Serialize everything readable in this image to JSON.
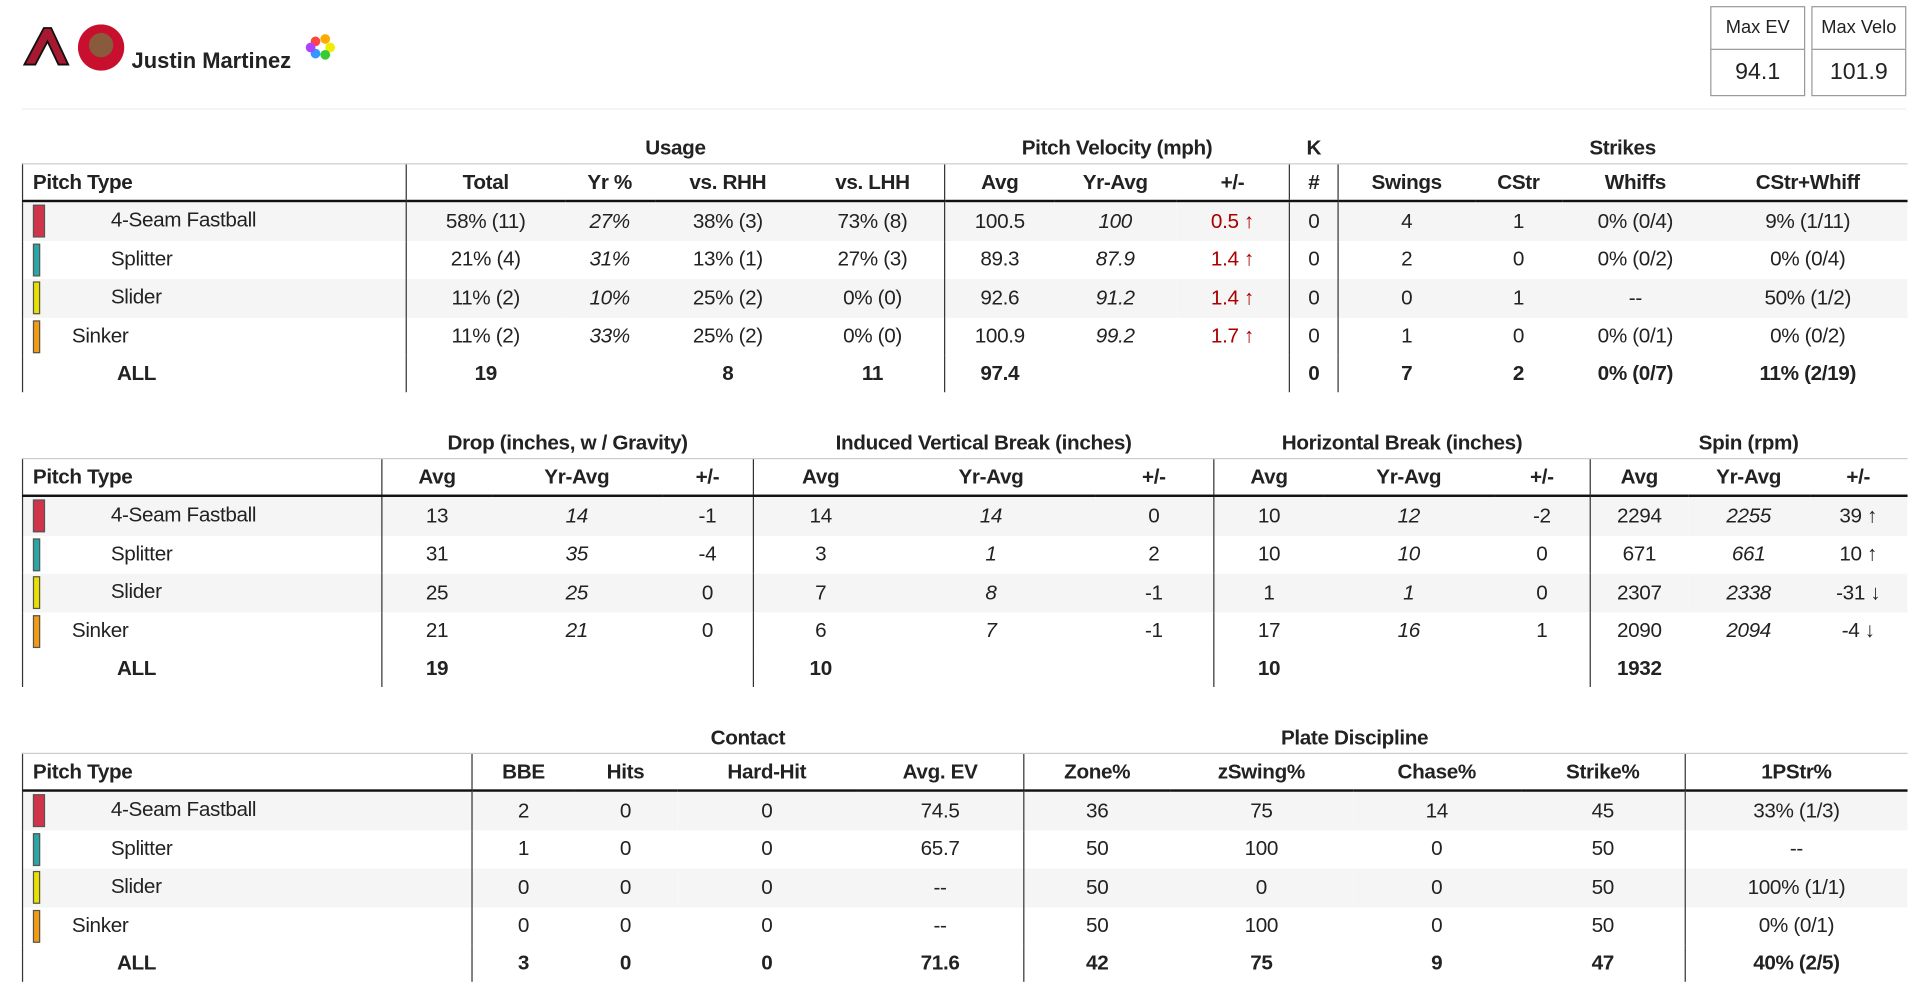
{
  "header": {
    "name": "Justin Martinez",
    "max_ev_label": "Max EV",
    "max_ev": "94.1",
    "max_velo_label": "Max Velo",
    "max_velo": "101.9"
  },
  "tables": [
    {
      "groups": [
        {
          "label": null,
          "span": 1
        },
        {
          "label": "Usage",
          "span": 4
        },
        {
          "label": "Pitch Velocity (mph)",
          "span": 3
        },
        {
          "label": "K",
          "span": 1
        },
        {
          "label": "Strikes",
          "span": 4
        }
      ],
      "columns": [
        "Pitch Type",
        "Total",
        "Yr %",
        "vs. RHH",
        "vs. LHH",
        "Avg",
        "Yr-Avg",
        "+/-",
        "#",
        "Swings",
        "CStr",
        "Whiffs",
        "CStr+Whiff"
      ],
      "rows": [
        {
          "pitch": "4-Seam Fastball",
          "color": "#d1334a",
          "cells": [
            "58% (11)",
            "27%",
            "38% (3)",
            "73% (8)",
            "100.5",
            "100",
            "0.5 ↑",
            "0",
            "4",
            "1",
            "0% (0/4)",
            "9% (1/11)"
          ]
        },
        {
          "pitch": "Splitter",
          "color": "#2aa6a6",
          "cells": [
            "21% (4)",
            "31%",
            "13% (1)",
            "27% (3)",
            "89.3",
            "87.9",
            "1.4 ↑",
            "0",
            "2",
            "0",
            "0% (0/2)",
            "0% (0/4)"
          ]
        },
        {
          "pitch": "Slider",
          "color": "#e8e000",
          "cells": [
            "11% (2)",
            "10%",
            "25% (2)",
            "0% (0)",
            "92.6",
            "91.2",
            "1.4 ↑",
            "0",
            "0",
            "1",
            "--",
            "50% (1/2)"
          ]
        },
        {
          "pitch": "Sinker",
          "color": "#f39c12",
          "cells": [
            "11% (2)",
            "33%",
            "25% (2)",
            "0% (0)",
            "100.9",
            "99.2",
            "1.7 ↑",
            "0",
            "1",
            "0",
            "0% (0/1)",
            "0% (0/2)"
          ]
        }
      ],
      "all": {
        "label": "ALL",
        "cells": [
          "19",
          null,
          "8",
          "11",
          "97.4",
          null,
          null,
          "0",
          "7",
          "2",
          "0% (0/7)",
          "11% (2/19)"
        ]
      }
    },
    {
      "groups": [
        {
          "label": null,
          "span": 1
        },
        {
          "label": "Drop (inches, w / Gravity)",
          "span": 3
        },
        {
          "label": "Induced Vertical Break (inches)",
          "span": 3
        },
        {
          "label": "Horizontal Break (inches)",
          "span": 3
        },
        {
          "label": "Spin (rpm)",
          "span": 3
        }
      ],
      "columns": [
        "Pitch Type",
        "Avg",
        "Yr-Avg",
        "+/-",
        "Avg",
        "Yr-Avg",
        "+/-",
        "Avg",
        "Yr-Avg",
        "+/-",
        "Avg",
        "Yr-Avg",
        "+/-"
      ],
      "rows": [
        {
          "pitch": "4-Seam Fastball",
          "color": "#d1334a",
          "cells": [
            "13",
            "14",
            "-1",
            "14",
            "14",
            "0",
            "10",
            "12",
            "-2",
            "2294",
            "2255",
            "39 ↑"
          ]
        },
        {
          "pitch": "Splitter",
          "color": "#2aa6a6",
          "cells": [
            "31",
            "35",
            "-4",
            "3",
            "1",
            "2",
            "10",
            "10",
            "0",
            "671",
            "661",
            "10 ↑"
          ]
        },
        {
          "pitch": "Slider",
          "color": "#e8e000",
          "cells": [
            "25",
            "25",
            "0",
            "7",
            "8",
            "-1",
            "1",
            "1",
            "0",
            "2307",
            "2338",
            "-31 ↓"
          ]
        },
        {
          "pitch": "Sinker",
          "color": "#f39c12",
          "cells": [
            "21",
            "21",
            "0",
            "6",
            "7",
            "-1",
            "17",
            "16",
            "1",
            "2090",
            "2094",
            "-4 ↓"
          ]
        }
      ],
      "all": {
        "label": "ALL",
        "cells": [
          "19",
          null,
          null,
          "10",
          null,
          null,
          "10",
          null,
          null,
          "1932",
          null,
          null
        ]
      }
    },
    {
      "groups": [
        {
          "label": null,
          "span": 1
        },
        {
          "label": "Contact",
          "span": 4
        },
        {
          "label": "Plate Discipline",
          "span": 4
        },
        {
          "label": null,
          "span": 1
        }
      ],
      "columns": [
        "Pitch Type",
        "BBE",
        "Hits",
        "Hard-Hit",
        "Avg. EV",
        "Zone%",
        "zSwing%",
        "Chase%",
        "Strike%",
        "1PStr%"
      ],
      "rows": [
        {
          "pitch": "4-Seam Fastball",
          "color": "#d1334a",
          "cells": [
            "2",
            "0",
            "0",
            "74.5",
            "36",
            "75",
            "14",
            "45",
            "33% (1/3)"
          ]
        },
        {
          "pitch": "Splitter",
          "color": "#2aa6a6",
          "cells": [
            "1",
            "0",
            "0",
            "65.7",
            "50",
            "100",
            "0",
            "50",
            "--"
          ]
        },
        {
          "pitch": "Slider",
          "color": "#e8e000",
          "cells": [
            "0",
            "0",
            "0",
            "--",
            "50",
            "0",
            "0",
            "50",
            "100% (1/1)"
          ]
        },
        {
          "pitch": "Sinker",
          "color": "#f39c12",
          "cells": [
            "0",
            "0",
            "0",
            "--",
            "50",
            "100",
            "0",
            "50",
            "0% (0/1)"
          ]
        }
      ],
      "all": {
        "label": "ALL",
        "cells": [
          "3",
          "0",
          "0",
          "71.6",
          "42",
          "75",
          "9",
          "47",
          "40% (2/5)"
        ]
      }
    }
  ]
}
